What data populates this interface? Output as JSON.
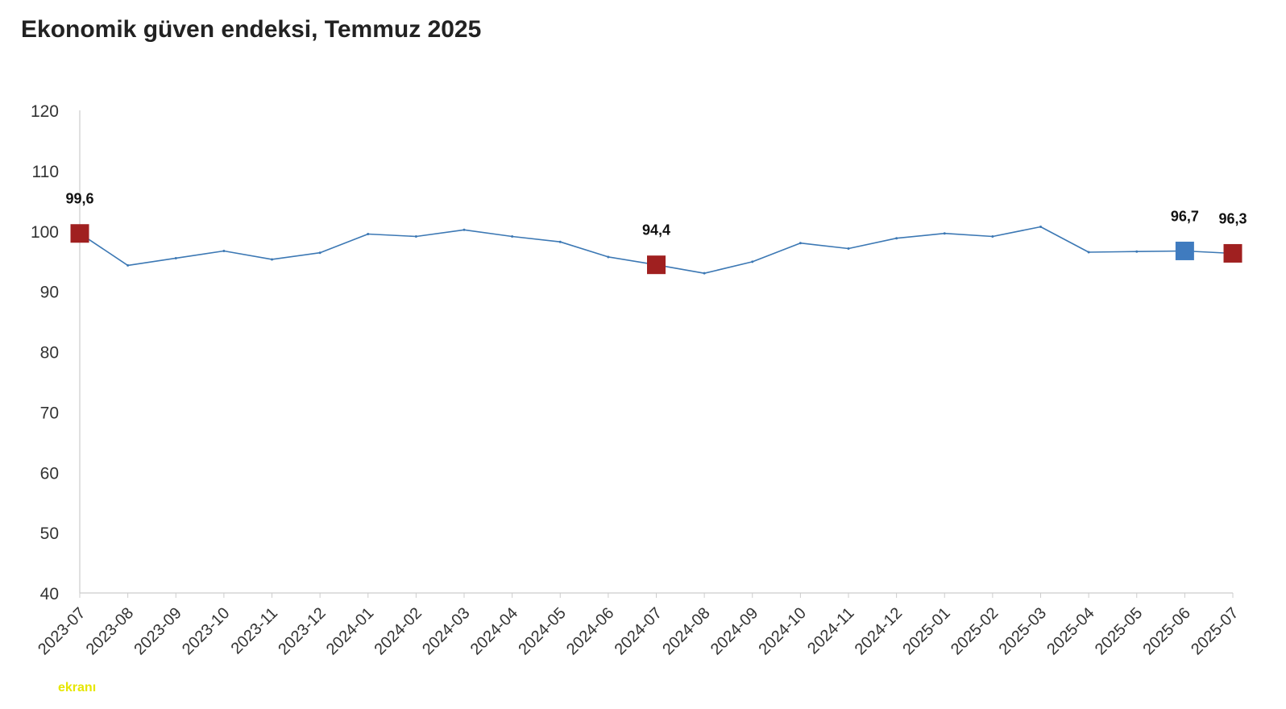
{
  "title": "Ekonomik güven endeksi, Temmuz 2025",
  "watermark": "ekranı",
  "colors": {
    "line": "#3c78b4",
    "highlight_red": "#a02020",
    "highlight_blue": "#3f7bbf",
    "axis": "#cccccc"
  },
  "chart_data": {
    "type": "line",
    "title": "Ekonomik güven endeksi, Temmuz 2025",
    "xlabel": "",
    "ylabel": "",
    "ylim": [
      40,
      120
    ],
    "yticks": [
      40,
      50,
      60,
      70,
      80,
      90,
      100,
      110,
      120
    ],
    "grid": false,
    "categories": [
      "2023-07",
      "2023-08",
      "2023-09",
      "2023-10",
      "2023-11",
      "2023-12",
      "2024-01",
      "2024-02",
      "2024-03",
      "2024-04",
      "2024-05",
      "2024-06",
      "2024-07",
      "2024-08",
      "2024-09",
      "2024-10",
      "2024-11",
      "2024-12",
      "2025-01",
      "2025-02",
      "2025-03",
      "2025-04",
      "2025-05",
      "2025-06",
      "2025-07"
    ],
    "series": [
      {
        "values": [
          99.6,
          94.3,
          95.5,
          96.7,
          95.3,
          96.4,
          99.5,
          99.1,
          100.2,
          99.1,
          98.2,
          95.7,
          94.4,
          93.0,
          94.9,
          98.0,
          97.1,
          98.8,
          99.6,
          99.1,
          100.7,
          96.5,
          96.6,
          96.7,
          96.3
        ]
      }
    ],
    "highlights": [
      {
        "category": "2023-07",
        "value": 99.6,
        "label": "99,6",
        "color": "red"
      },
      {
        "category": "2024-07",
        "value": 94.4,
        "label": "94,4",
        "color": "red"
      },
      {
        "category": "2025-06",
        "value": 96.7,
        "label": "96,7",
        "color": "blue"
      },
      {
        "category": "2025-07",
        "value": 96.3,
        "label": "96,3",
        "color": "red"
      }
    ]
  }
}
